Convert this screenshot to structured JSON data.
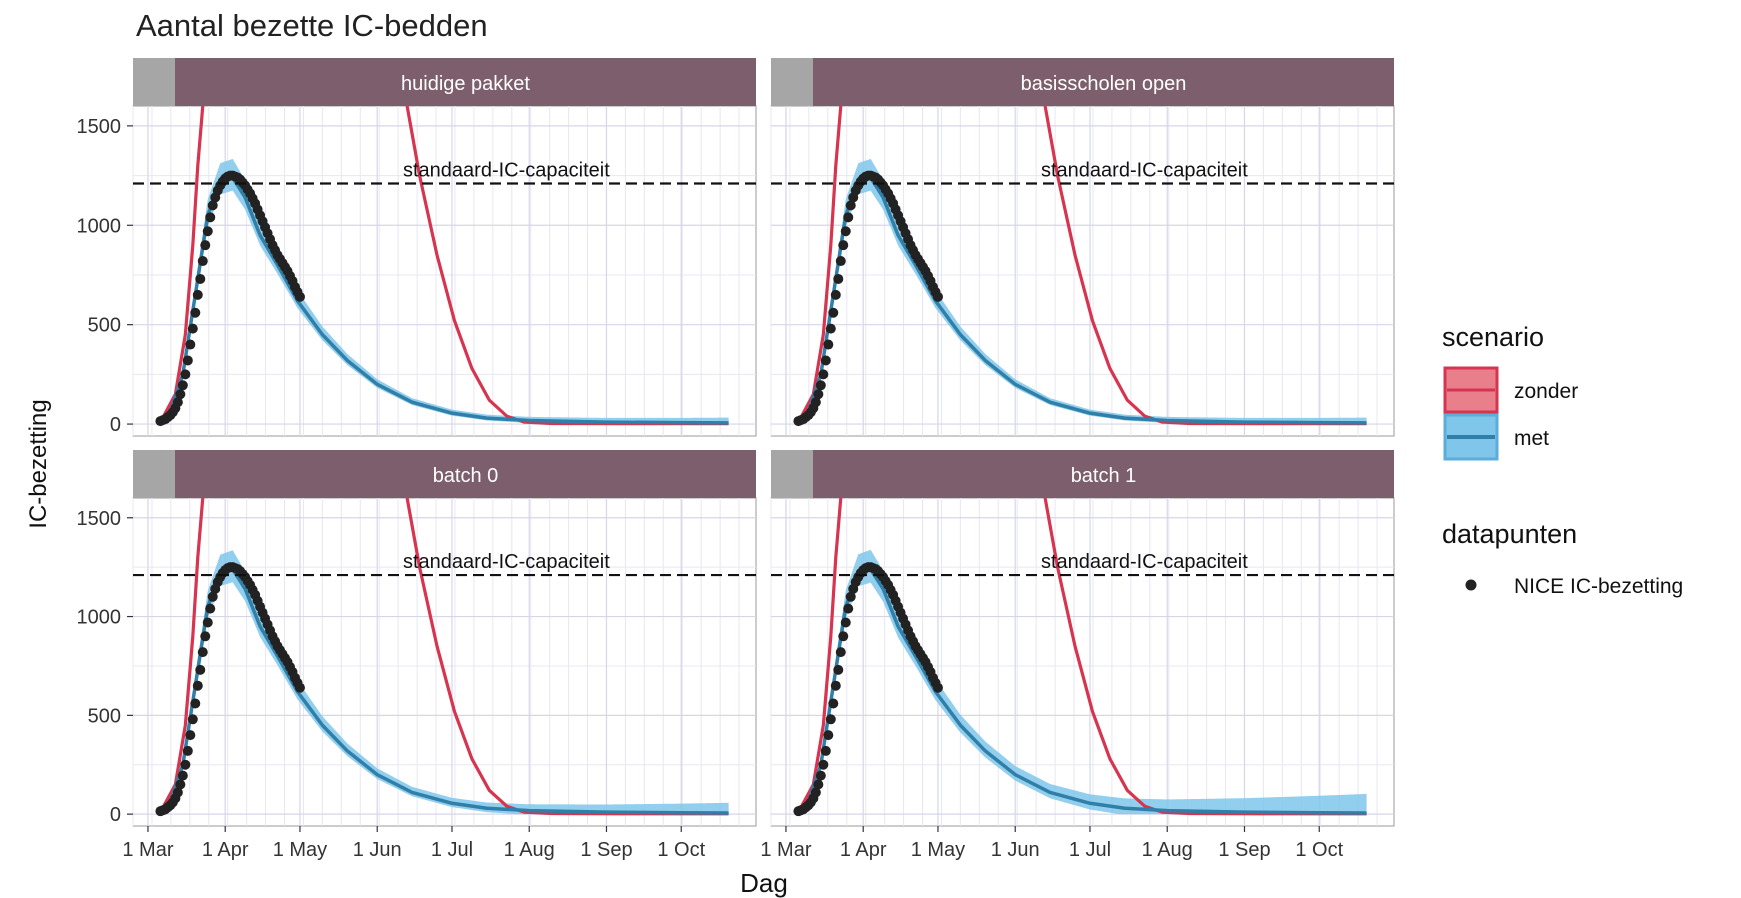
{
  "chart_data": {
    "type": "line",
    "title": "Aantal bezette IC-bedden",
    "xlabel": "Dag",
    "ylabel": "IC-bezetting",
    "ylim": [
      -60,
      1600
    ],
    "yticks": [
      0,
      500,
      1000,
      1500
    ],
    "xticks": [
      {
        "date": "2020-03-01",
        "label": "1 Mar"
      },
      {
        "date": "2020-04-01",
        "label": "1 Apr"
      },
      {
        "date": "2020-05-01",
        "label": "1 May"
      },
      {
        "date": "2020-06-01",
        "label": "1 Jun"
      },
      {
        "date": "2020-07-01",
        "label": "1 Jul"
      },
      {
        "date": "2020-08-01",
        "label": "1 Aug"
      },
      {
        "date": "2020-09-01",
        "label": "1 Sep"
      },
      {
        "date": "2020-10-01",
        "label": "1 Oct"
      }
    ],
    "xlim": [
      "2020-02-24",
      "2020-10-31"
    ],
    "grid": true,
    "capacity": {
      "value": 1210,
      "label": "standaard-IC-capaciteit"
    },
    "colors": {
      "zonder": "#d7344f",
      "met": "#2f7fa8",
      "met_band": "#7fc6ea",
      "points": "#222222",
      "strip": "#7d5e6c",
      "strip_gray": "#a6a6a6"
    },
    "legend": {
      "position": "right",
      "scenario_title": "scenario",
      "scenario_items": [
        "zonder",
        "met"
      ],
      "datapunten_title": "datapunten",
      "datapunten_items": [
        "NICE IC-bezetting"
      ]
    },
    "panels": [
      {
        "label": "huidige pakket",
        "band_end": 20
      },
      {
        "label": "basisscholen open",
        "band_end": 20
      },
      {
        "label": "batch 0",
        "band_end": 45
      },
      {
        "label": "batch 1",
        "band_end": 90
      }
    ],
    "series": [
      {
        "name": "zonder",
        "points": [
          [
            "2020-03-06",
            10
          ],
          [
            "2020-03-12",
            150
          ],
          [
            "2020-03-16",
            450
          ],
          [
            "2020-03-19",
            900
          ],
          [
            "2020-03-21",
            1300
          ],
          [
            "2020-03-23",
            1600
          ],
          [
            "2020-06-13",
            1600
          ],
          [
            "2020-06-18",
            1250
          ],
          [
            "2020-06-25",
            850
          ],
          [
            "2020-07-02",
            520
          ],
          [
            "2020-07-09",
            280
          ],
          [
            "2020-07-16",
            120
          ],
          [
            "2020-07-23",
            40
          ],
          [
            "2020-07-30",
            10
          ],
          [
            "2020-08-10",
            3
          ],
          [
            "2020-09-10",
            2
          ],
          [
            "2020-10-20",
            2
          ]
        ]
      },
      {
        "name": "met",
        "points": [
          [
            "2020-03-06",
            15
          ],
          [
            "2020-03-10",
            60
          ],
          [
            "2020-03-15",
            250
          ],
          [
            "2020-03-20",
            650
          ],
          [
            "2020-03-25",
            1050
          ],
          [
            "2020-03-30",
            1220
          ],
          [
            "2020-04-04",
            1240
          ],
          [
            "2020-04-09",
            1140
          ],
          [
            "2020-04-15",
            950
          ],
          [
            "2020-04-22",
            800
          ],
          [
            "2020-04-30",
            620
          ],
          [
            "2020-05-10",
            450
          ],
          [
            "2020-05-20",
            320
          ],
          [
            "2020-06-01",
            200
          ],
          [
            "2020-06-15",
            110
          ],
          [
            "2020-07-01",
            55
          ],
          [
            "2020-07-15",
            30
          ],
          [
            "2020-08-01",
            18
          ],
          [
            "2020-09-01",
            10
          ],
          [
            "2020-10-01",
            7
          ],
          [
            "2020-10-20",
            6
          ]
        ]
      },
      {
        "name": "NICE IC-bezetting",
        "points": [
          [
            "2020-03-06",
            15
          ],
          [
            "2020-03-07",
            20
          ],
          [
            "2020-03-08",
            25
          ],
          [
            "2020-03-09",
            35
          ],
          [
            "2020-03-10",
            45
          ],
          [
            "2020-03-11",
            60
          ],
          [
            "2020-03-12",
            80
          ],
          [
            "2020-03-13",
            110
          ],
          [
            "2020-03-14",
            150
          ],
          [
            "2020-03-15",
            195
          ],
          [
            "2020-03-16",
            250
          ],
          [
            "2020-03-17",
            320
          ],
          [
            "2020-03-18",
            400
          ],
          [
            "2020-03-19",
            480
          ],
          [
            "2020-03-20",
            560
          ],
          [
            "2020-03-21",
            650
          ],
          [
            "2020-03-22",
            730
          ],
          [
            "2020-03-23",
            820
          ],
          [
            "2020-03-24",
            900
          ],
          [
            "2020-03-25",
            970
          ],
          [
            "2020-03-26",
            1040
          ],
          [
            "2020-03-27",
            1100
          ],
          [
            "2020-03-28",
            1140
          ],
          [
            "2020-03-29",
            1175
          ],
          [
            "2020-03-30",
            1200
          ],
          [
            "2020-03-31",
            1220
          ],
          [
            "2020-04-01",
            1235
          ],
          [
            "2020-04-02",
            1245
          ],
          [
            "2020-04-03",
            1250
          ],
          [
            "2020-04-04",
            1250
          ],
          [
            "2020-04-05",
            1245
          ],
          [
            "2020-04-06",
            1240
          ],
          [
            "2020-04-07",
            1230
          ],
          [
            "2020-04-08",
            1215
          ],
          [
            "2020-04-09",
            1200
          ],
          [
            "2020-04-10",
            1180
          ],
          [
            "2020-04-11",
            1160
          ],
          [
            "2020-04-12",
            1135
          ],
          [
            "2020-04-13",
            1110
          ],
          [
            "2020-04-14",
            1080
          ],
          [
            "2020-04-15",
            1050
          ],
          [
            "2020-04-16",
            1020
          ],
          [
            "2020-04-17",
            990
          ],
          [
            "2020-04-18",
            960
          ],
          [
            "2020-04-19",
            930
          ],
          [
            "2020-04-20",
            900
          ],
          [
            "2020-04-21",
            875
          ],
          [
            "2020-04-22",
            850
          ],
          [
            "2020-04-23",
            830
          ],
          [
            "2020-04-24",
            810
          ],
          [
            "2020-04-25",
            790
          ],
          [
            "2020-04-26",
            770
          ],
          [
            "2020-04-27",
            745
          ],
          [
            "2020-04-28",
            720
          ],
          [
            "2020-04-29",
            690
          ],
          [
            "2020-04-30",
            665
          ],
          [
            "2020-05-01",
            640
          ]
        ]
      }
    ]
  }
}
